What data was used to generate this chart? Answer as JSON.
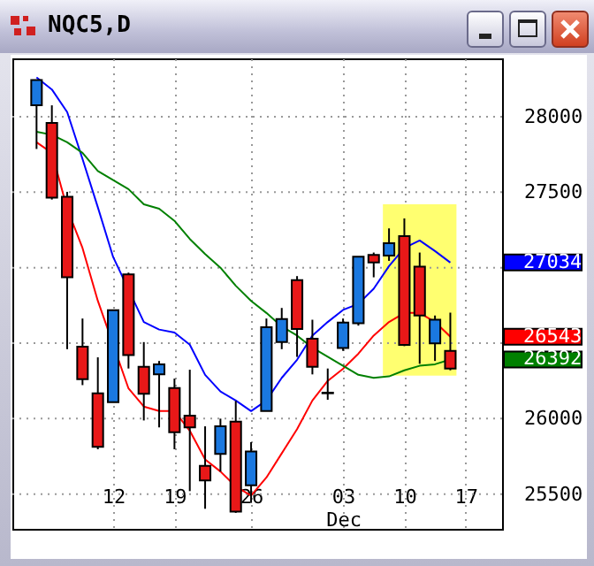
{
  "chart_data": {
    "type": "candlestick",
    "title": "NQC5,D",
    "categories": [
      null,
      null,
      null,
      null,
      null,
      "12",
      null,
      null,
      null,
      "19",
      null,
      null,
      null,
      null,
      "26",
      null,
      null,
      null,
      null,
      null,
      "03\nDec",
      null,
      null,
      null,
      "10",
      null,
      null,
      null,
      "17",
      null
    ],
    "ohlc": [
      [
        28075,
        28243,
        27786,
        28243
      ],
      [
        27958,
        28075,
        27451,
        27463
      ],
      [
        27470,
        27502,
        26460,
        26936
      ],
      [
        26476,
        26663,
        26222,
        26261
      ],
      [
        26168,
        26406,
        25797,
        25813
      ],
      [
        26109,
        26718,
        26109,
        26718
      ],
      [
        26956,
        26967,
        26332,
        26421
      ],
      [
        26343,
        26507,
        25988,
        26164
      ],
      [
        26293,
        26382,
        25942,
        26359
      ],
      [
        26203,
        26265,
        25797,
        25910
      ],
      [
        26020,
        26324,
        25520,
        25942
      ],
      [
        25688,
        25949,
        25403,
        25591
      ],
      [
        25766,
        26000,
        25649,
        25949
      ],
      [
        25980,
        26117,
        25376,
        25384
      ],
      [
        25559,
        25844,
        25442,
        25782
      ],
      [
        26051,
        26663,
        26051,
        26605
      ],
      [
        26507,
        26733,
        26460,
        26659
      ],
      [
        26917,
        26944,
        26409,
        26593
      ],
      [
        26530,
        26655,
        26293,
        26343
      ],
      [
        26172,
        26332,
        26125,
        26168
      ],
      [
        26468,
        26663,
        26449,
        26636
      ],
      [
        26632,
        27073,
        26616,
        27073
      ],
      [
        27084,
        27100,
        26936,
        27034
      ],
      [
        27080,
        27260,
        27045,
        27162
      ],
      [
        27209,
        27326,
        26480,
        26488
      ],
      [
        27006,
        27100,
        26363,
        26683
      ],
      [
        26499,
        26683,
        26382,
        26655
      ],
      [
        26449,
        26702,
        26320,
        26332
      ],
      null,
      null
    ],
    "colors": [
      "#1a78e0",
      "#e81818",
      "#e81818",
      "#e81818",
      "#e81818",
      "#1a78e0",
      "#e81818",
      "#e81818",
      "#1a78e0",
      "#e81818",
      "#e81818",
      "#e81818",
      "#1a78e0",
      "#e81818",
      "#1a78e0",
      "#1a78e0",
      "#1a78e0",
      "#e81818",
      "#e81818",
      "#e81818",
      "#1a78e0",
      "#1a78e0",
      "#e81818",
      "#1a78e0",
      "#e81818",
      "#e81818",
      "#1a78e0",
      "#e81818",
      null,
      null
    ],
    "series": [
      {
        "type": "line",
        "color": "#0000ff",
        "values": [
          28260,
          28180,
          28030,
          27720,
          27400,
          27070,
          null,
          26640,
          26590,
          26570,
          26490,
          26290,
          26180,
          26120,
          26050,
          26120,
          26270,
          26390,
          26550,
          26640,
          26720,
          26760,
          26860,
          27010,
          27130,
          27180,
          27110,
          27034,
          null,
          null
        ]
      },
      {
        "type": "line",
        "color": "#ff0000",
        "values": [
          27830,
          27760,
          27390,
          27130,
          26780,
          null,
          26200,
          26080,
          26050,
          26050,
          25920,
          25730,
          25650,
          25550,
          25490,
          25610,
          25770,
          25930,
          26120,
          26250,
          26330,
          26430,
          26550,
          26640,
          26700,
          26700,
          26640,
          26543,
          null,
          null
        ]
      },
      {
        "type": "line",
        "color": "#008000",
        "values": [
          27900,
          27880,
          27830,
          27760,
          27640,
          27580,
          27520,
          27420,
          27390,
          27310,
          27190,
          27090,
          27000,
          26880,
          26780,
          26700,
          26610,
          26550,
          26470,
          26410,
          26350,
          26290,
          26270,
          26280,
          26320,
          26350,
          26360,
          26392,
          null,
          null
        ]
      }
    ],
    "ylim": [
      25270,
      28386
    ],
    "yticks": [
      25500,
      26000,
      {
        "value": 26500,
        "label": null
      },
      {
        "value": 27000,
        "label": null
      },
      27500,
      28000,
      27034,
      26543,
      26392
    ],
    "grid": true
  }
}
